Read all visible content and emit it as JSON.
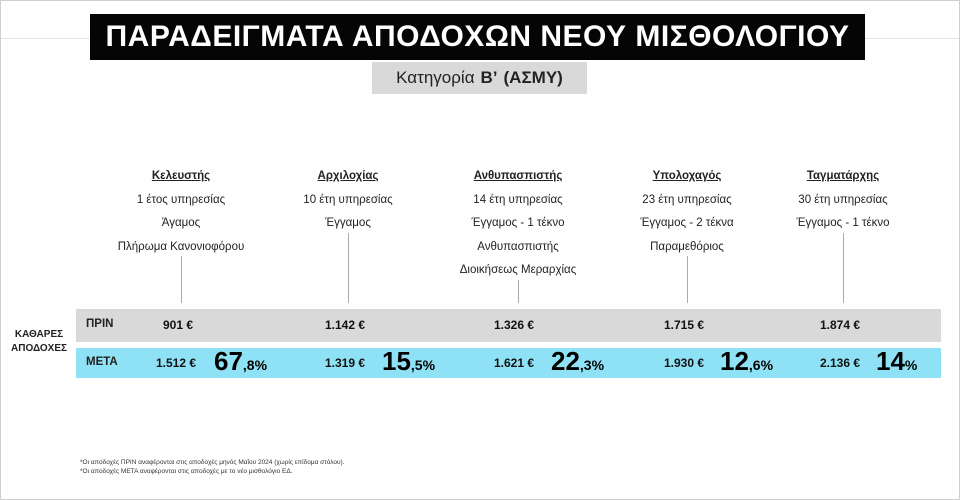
{
  "title": "ΠΑΡΑΔΕΙΓΜΑΤΑ ΑΠΟΔΟΧΩΝ ΝΕΟΥ ΜΙΣΘΟΛΟΓΙΟΥ",
  "subtitle": {
    "prefix": "Κατηγορία",
    "category": "Β’",
    "group": "(ΑΣΜΥ)"
  },
  "side_label": {
    "line1": "ΚΑΘΑΡΕΣ",
    "line2": "ΑΠΟΔΟΧΕΣ"
  },
  "rows": {
    "before_label": "ΠΡΙΝ",
    "after_label": "ΜΕΤΑ"
  },
  "examples": [
    {
      "rank": "Κελευστής",
      "details": [
        "1 έτος υπηρεσίας",
        "Άγαμος",
        "Πλήρωμα Κανονιοφόρου"
      ],
      "before": "901 €",
      "after": "1.512 €",
      "pct_main": "67",
      "pct_decimal": ",8%"
    },
    {
      "rank": "Αρχιλοχίας",
      "details": [
        "10 έτη υπηρεσίας",
        "Έγγαμος"
      ],
      "before": "1.142 €",
      "after": "1.319 €",
      "pct_main": "15",
      "pct_decimal": ",5%"
    },
    {
      "rank": "Ανθυπασπιστής",
      "details": [
        "14 έτη υπηρεσίας",
        "Έγγαμος - 1 τέκνο",
        "Ανθυπασπιστής",
        "Διοικήσεως Μεραρχίας"
      ],
      "before": "1.326 €",
      "after": "1.621 €",
      "pct_main": "22",
      "pct_decimal": ",3%"
    },
    {
      "rank": "Υπολοχαγός",
      "details": [
        "23 έτη υπηρεσίας",
        "Έγγαμος - 2 τέκνα",
        "Παραμεθόριος"
      ],
      "before": "1.715 €",
      "after": "1.930 €",
      "pct_main": "12",
      "pct_decimal": ",6%"
    },
    {
      "rank": "Ταγματάρχης",
      "details": [
        "30 έτη υπηρεσίας",
        "Έγγαμος - 1 τέκνο"
      ],
      "before": "1.874 €",
      "after": "2.136 €",
      "pct_main": "14",
      "pct_decimal": "%"
    }
  ],
  "footnotes": [
    "*Οι αποδοχές ΠΡΙΝ αναφέρονται στις αποδοχές μηνός Μαΐου 2024 (χωρίς επίδομα στόλου).",
    "*Οι αποδοχές ΜΕΤΑ αναφέρονται στις αποδοχές με το νέο μισθολόγιο ΕΔ."
  ],
  "colors": {
    "banner": "#050505",
    "subtitle_bg": "#d9d9d9",
    "before_row": "#d9d9d9",
    "after_row": "#8fe2f5"
  }
}
